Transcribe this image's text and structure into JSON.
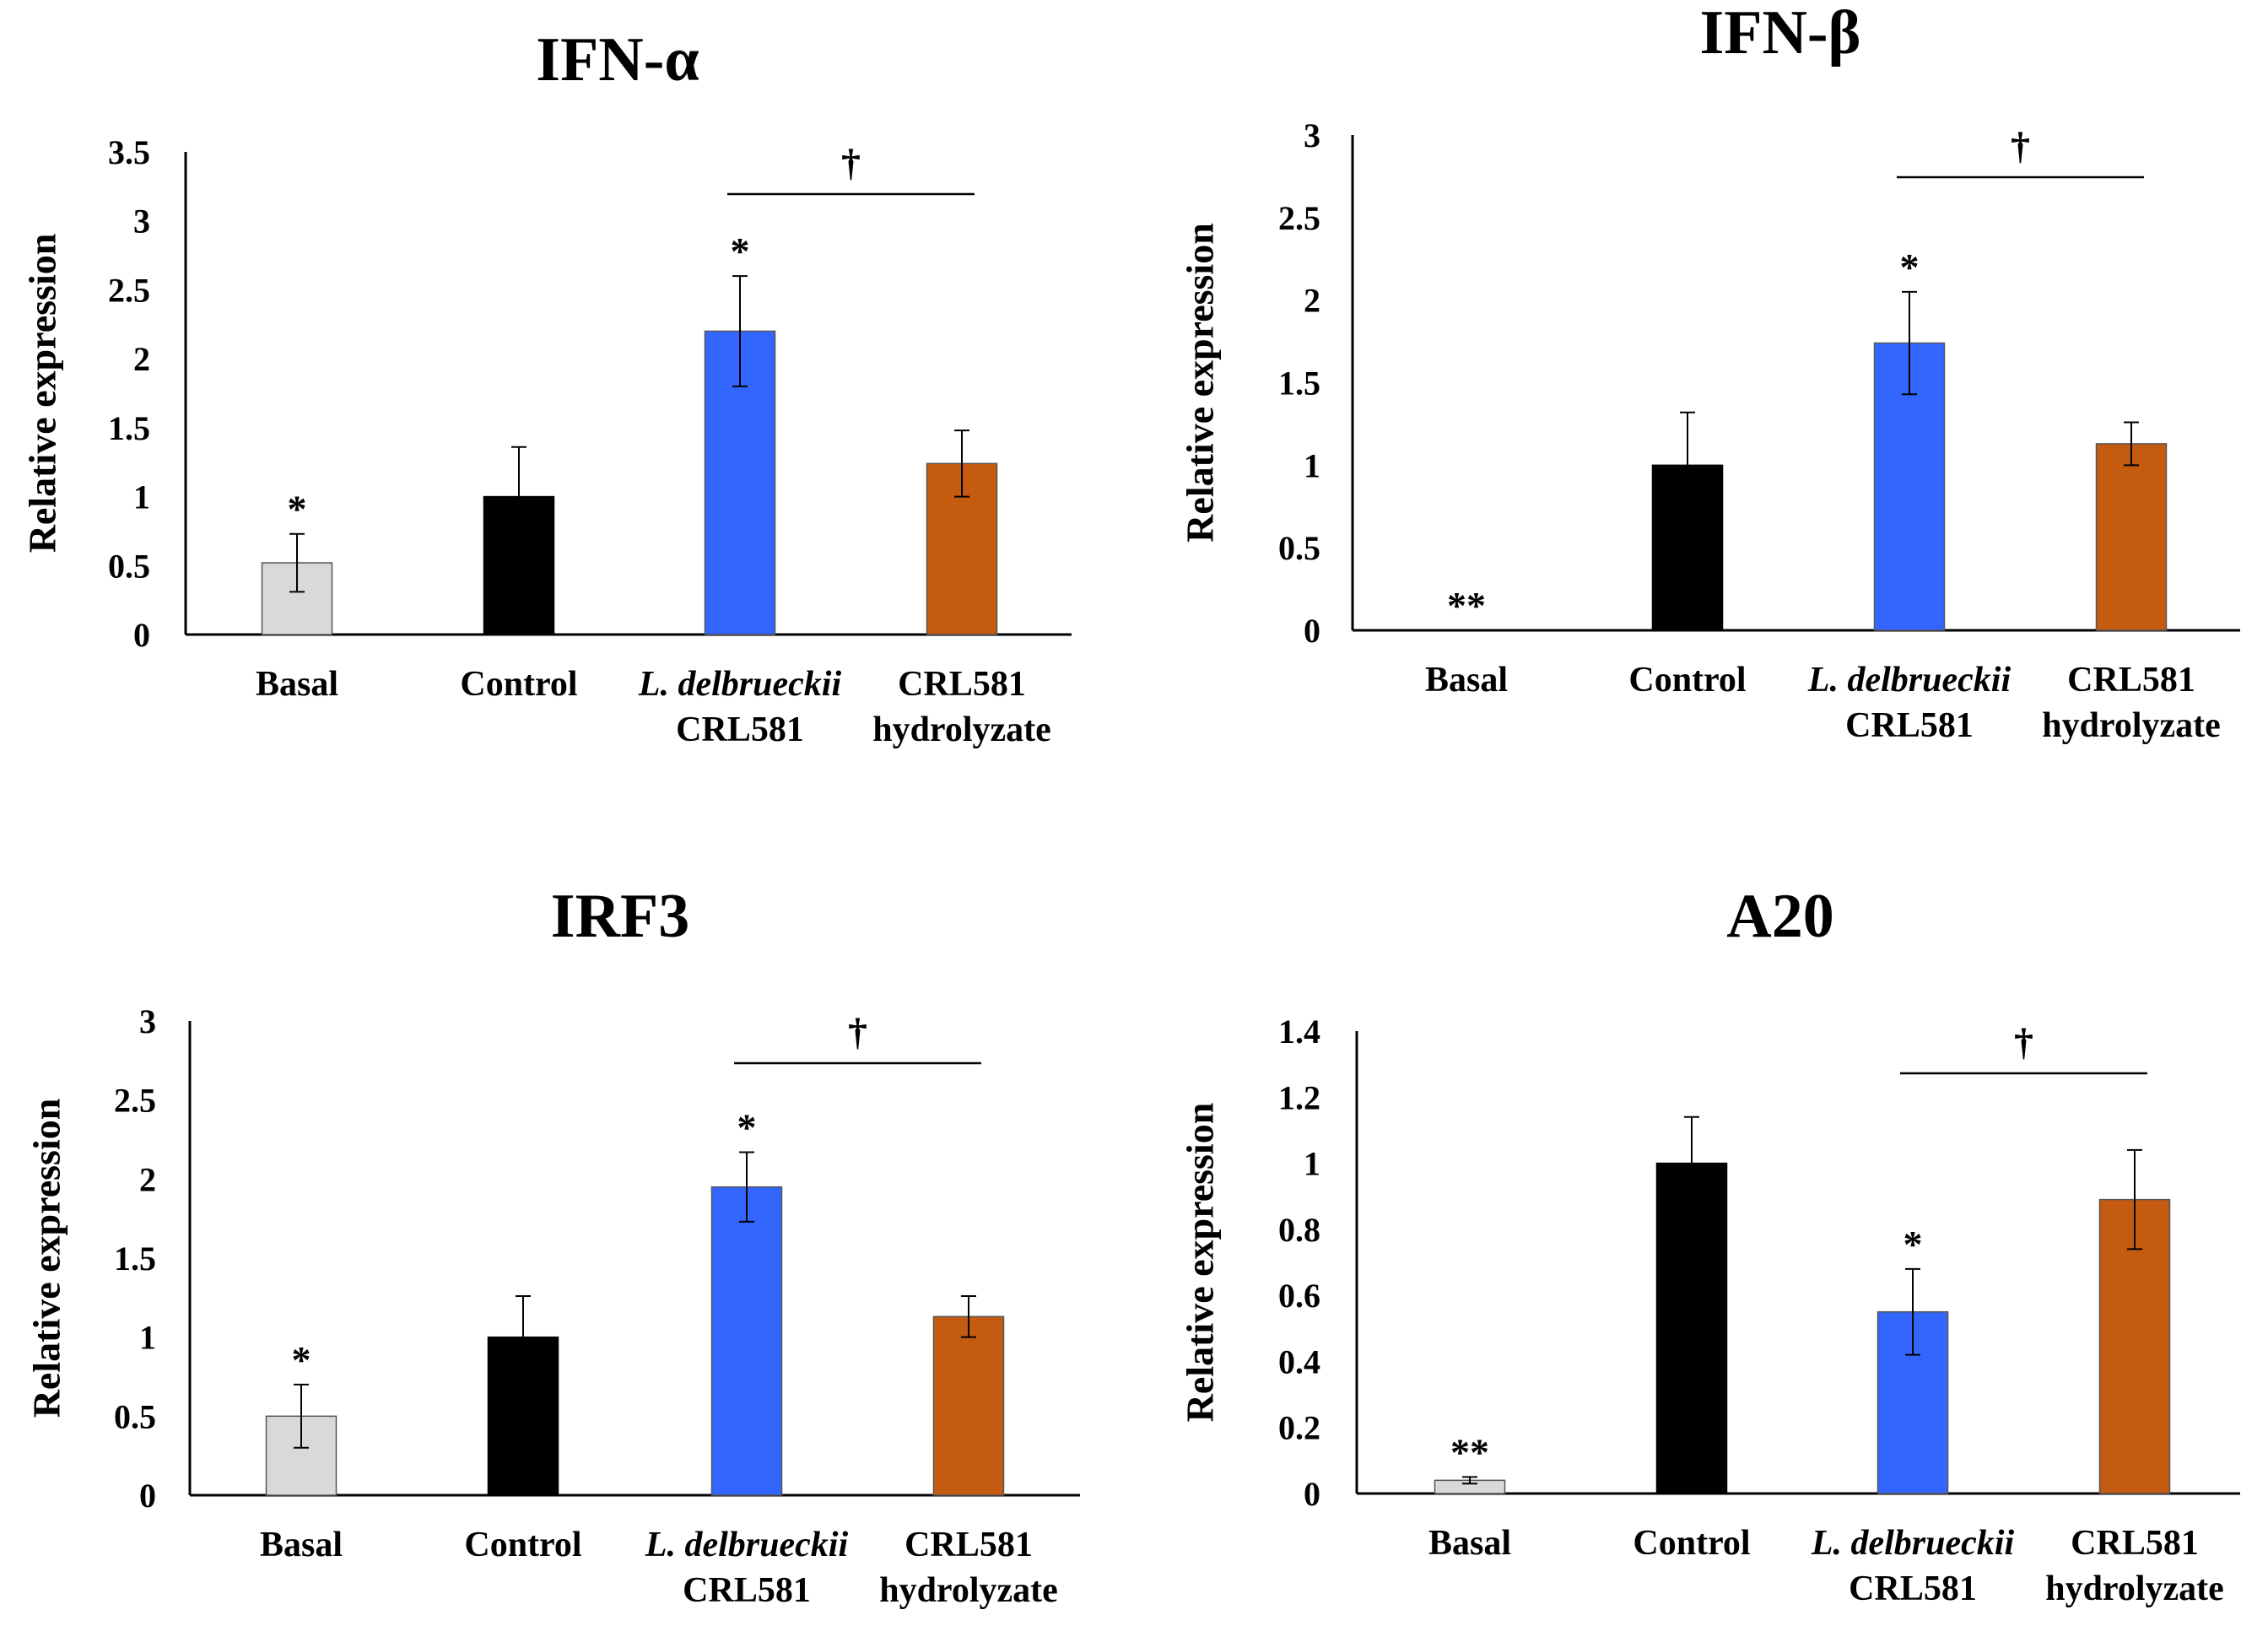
{
  "chart_data": [
    {
      "type": "bar",
      "title": "IFN-α",
      "ylabel": "Relative expression",
      "ylim": [
        0,
        3.5
      ],
      "yticks": [
        "0",
        "0.5",
        "1",
        "1.5",
        "2",
        "2.5",
        "3",
        "3.5"
      ],
      "categories": [
        [
          "Basal"
        ],
        [
          "Control"
        ],
        [
          "L. delbrueckii",
          "CRL581"
        ],
        [
          "CRL581",
          "hydrolyzate"
        ]
      ],
      "values": [
        0.52,
        1.0,
        2.2,
        1.24
      ],
      "errors": [
        0.21,
        0.36,
        0.4,
        0.24
      ],
      "annotations": [
        "*",
        "",
        "*",
        ""
      ],
      "bracket": {
        "from": 2,
        "to": 3,
        "symbol": "†"
      },
      "colors": [
        "#d9d9d9",
        "#000000",
        "#3366ff",
        "#c55a11"
      ]
    },
    {
      "type": "bar",
      "title": "IFN-β",
      "ylabel": "Relative expression",
      "ylim": [
        0,
        3
      ],
      "yticks": [
        "0",
        "0.5",
        "1",
        "1.5",
        "2",
        "2.5",
        "3"
      ],
      "categories": [
        [
          "Basal"
        ],
        [
          "Control"
        ],
        [
          "L. delbrueckii",
          "CRL581"
        ],
        [
          "CRL581",
          "hydrolyzate"
        ]
      ],
      "values": [
        0.0,
        1.0,
        1.74,
        1.13
      ],
      "errors": [
        0.0,
        0.32,
        0.31,
        0.13
      ],
      "annotations": [
        "**",
        "",
        "*",
        ""
      ],
      "bracket": {
        "from": 2,
        "to": 3,
        "symbol": "†"
      },
      "colors": [
        "#d9d9d9",
        "#000000",
        "#3366ff",
        "#c55a11"
      ]
    },
    {
      "type": "bar",
      "title": "IRF3",
      "ylabel": "Relative expression",
      "ylim": [
        0,
        3
      ],
      "yticks": [
        "0",
        "0.5",
        "1",
        "1.5",
        "2",
        "2.5",
        "3"
      ],
      "categories": [
        [
          "Basal"
        ],
        [
          "Control"
        ],
        [
          "L. delbrueckii",
          "CRL581"
        ],
        [
          "CRL581",
          "hydrolyzate"
        ]
      ],
      "values": [
        0.5,
        1.0,
        1.95,
        1.13
      ],
      "errors": [
        0.2,
        0.26,
        0.22,
        0.13
      ],
      "annotations": [
        "*",
        "",
        "*",
        ""
      ],
      "bracket": {
        "from": 2,
        "to": 3,
        "symbol": "†"
      },
      "colors": [
        "#d9d9d9",
        "#000000",
        "#3366ff",
        "#c55a11"
      ]
    },
    {
      "type": "bar",
      "title": "A20",
      "ylabel": "Relative expression",
      "ylim": [
        0,
        1.4
      ],
      "yticks": [
        "0",
        "0.2",
        "0.4",
        "0.6",
        "0.8",
        "1",
        "1.2",
        "1.4"
      ],
      "categories": [
        [
          "Basal"
        ],
        [
          "Control"
        ],
        [
          "L. delbrueckii",
          "CRL581"
        ],
        [
          "CRL581",
          "hydrolyzate"
        ]
      ],
      "values": [
        0.04,
        1.0,
        0.55,
        0.89
      ],
      "errors": [
        0.01,
        0.14,
        0.13,
        0.15
      ],
      "annotations": [
        "**",
        "",
        "*",
        ""
      ],
      "bracket": {
        "from": 2,
        "to": 3,
        "symbol": "†"
      },
      "colors": [
        "#d9d9d9",
        "#000000",
        "#3366ff",
        "#c55a11"
      ]
    }
  ]
}
